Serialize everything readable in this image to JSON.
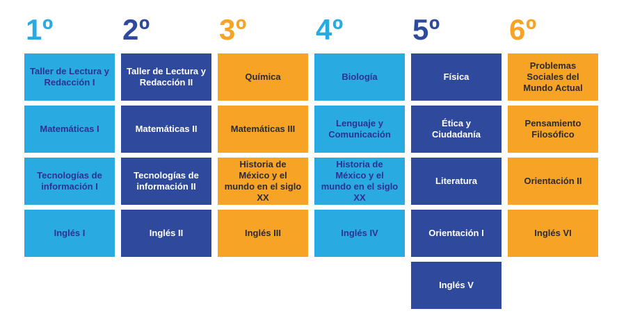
{
  "colors": {
    "light_blue": "#29ABE2",
    "dark_blue": "#2F4A9C",
    "orange": "#F7A325",
    "text_on_light_blue": "#2E3192",
    "text_on_dark_blue": "#FFFFFF",
    "text_on_orange": "#2B2B33",
    "background": "#FFFFFF"
  },
  "semesters": [
    {
      "label": "1º",
      "color": "light_blue",
      "subjects": [
        "Taller de Lectura y Redacción I",
        "Matemáticas I",
        "Tecnologías de información I",
        "Inglés I"
      ]
    },
    {
      "label": "2º",
      "color": "dark_blue",
      "subjects": [
        "Taller de Lectura y Redacción II",
        "Matemáticas II",
        "Tecnologías de información II",
        "Inglés II"
      ]
    },
    {
      "label": "3º",
      "color": "orange",
      "subjects": [
        "Química",
        "Matemáticas III",
        "Historia de México y el mundo en el siglo XX",
        "Inglés III"
      ]
    },
    {
      "label": "4º",
      "color": "light_blue",
      "subjects": [
        "Biología",
        "Lenguaje y Comunicación",
        "Historia de México y el mundo en el siglo XX",
        "Inglés IV"
      ]
    },
    {
      "label": "5º",
      "color": "dark_blue",
      "subjects": [
        "Física",
        "Ética y Ciudadanía",
        "Literatura",
        "Orientación I",
        "Inglés V"
      ]
    },
    {
      "label": "6º",
      "color": "orange",
      "subjects": [
        "Problemas Sociales del Mundo Actual",
        "Pensamiento Filosófico",
        "Orientación II",
        "Inglés VI"
      ]
    }
  ]
}
